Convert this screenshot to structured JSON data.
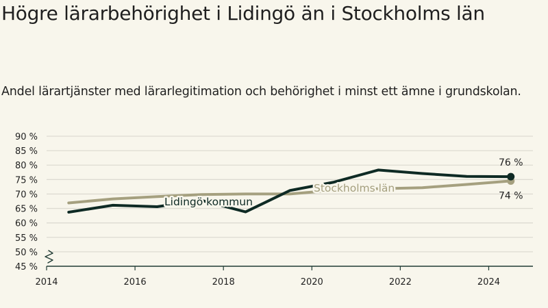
{
  "title": "Högre lärarbehörighet i Lidingö än i Stockholms län",
  "subtitle": "Andel lärartjänster med lärarlegitimation och behörighet i minst ett ämne i grundskolan.",
  "colors": {
    "background": "#f8f6ec",
    "lidingo": "#0e2a24",
    "stockholm": "#a5a07f",
    "grid": "#dddbd2",
    "axis": "#1f3a33"
  },
  "chart_data": {
    "type": "line",
    "y_tick_labels": [
      "45 %",
      "50 %",
      "55 %",
      "60 %",
      "65 %",
      "70 %",
      "75 %",
      "80 %",
      "85 %",
      "90 %"
    ],
    "y_ticks": [
      45,
      50,
      55,
      60,
      65,
      70,
      75,
      80,
      85,
      90
    ],
    "x_tick_labels": [
      "2014",
      "2016",
      "2018",
      "2020",
      "2022",
      "2024"
    ],
    "x_ticks": [
      2014,
      2016,
      2018,
      2020,
      2022,
      2024
    ],
    "ylim": [
      45,
      90
    ],
    "xlim": [
      2014,
      2025
    ],
    "grid": true,
    "axis_break": true,
    "series": [
      {
        "name": "Stockholms län",
        "color": "#a5a07f",
        "x": [
          2014.5,
          2015.5,
          2016.5,
          2017.5,
          2018.5,
          2019.5,
          2020.5,
          2021.5,
          2022.5,
          2023.5,
          2024.5
        ],
        "values": [
          66.9,
          68.3,
          69.1,
          69.8,
          70.0,
          70.0,
          71.3,
          71.8,
          72.2,
          73.3,
          74.5
        ],
        "end_label": "74 %"
      },
      {
        "name": "Lidingö kommun",
        "color": "#0e2a24",
        "x": [
          2014.5,
          2015.5,
          2016.5,
          2017.5,
          2018.5,
          2019.5,
          2020.5,
          2021.5,
          2022.5,
          2023.5,
          2024.5
        ],
        "values": [
          63.7,
          66.1,
          65.6,
          67.8,
          63.8,
          71.2,
          74.1,
          78.3,
          77.1,
          76.1,
          76.0
        ],
        "end_label": "76 %"
      }
    ]
  }
}
